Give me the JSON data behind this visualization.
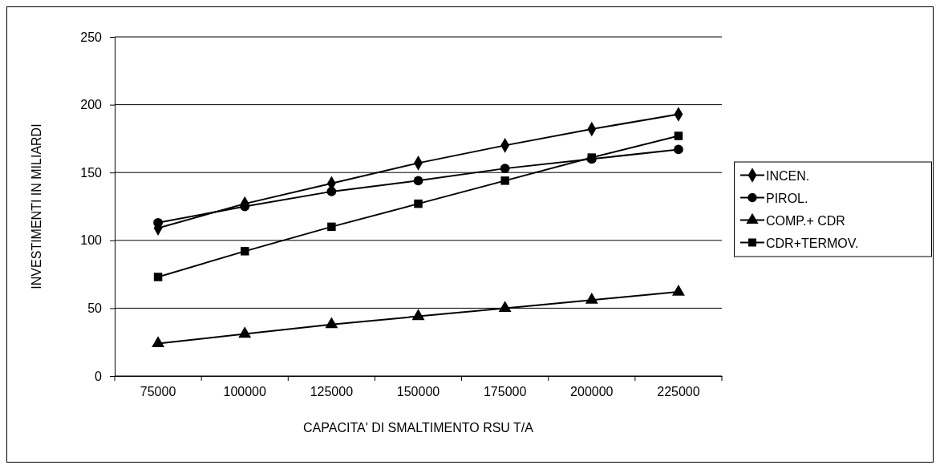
{
  "chart_data": {
    "type": "line",
    "xlabel": "CAPACITA' DI SMALTIMENTO RSU T/A",
    "ylabel": "INVESTIMENTI IN MILIARDI",
    "categories": [
      "75000",
      "100000",
      "125000",
      "150000",
      "175000",
      "200000",
      "225000"
    ],
    "ylim": [
      0,
      250
    ],
    "yticks": [
      0,
      50,
      100,
      150,
      200,
      250
    ],
    "grid": "y",
    "legend": "right",
    "line_style": "solid",
    "series": [
      {
        "name": "INCEN.",
        "color": "#000000",
        "marker": "diamond",
        "values": [
          109,
          127,
          142,
          157,
          170,
          182,
          193
        ]
      },
      {
        "name": "PIROL.",
        "color": "#000000",
        "marker": "circle",
        "values": [
          113,
          125,
          136,
          144,
          153,
          160,
          167
        ]
      },
      {
        "name": "COMP.+ CDR",
        "color": "#000000",
        "marker": "triangle",
        "values": [
          24,
          31,
          38,
          44,
          50,
          56,
          62
        ]
      },
      {
        "name": "CDR+TERMOV.",
        "color": "#000000",
        "marker": "square",
        "values": [
          73,
          92,
          110,
          127,
          144,
          161,
          177
        ]
      }
    ]
  }
}
